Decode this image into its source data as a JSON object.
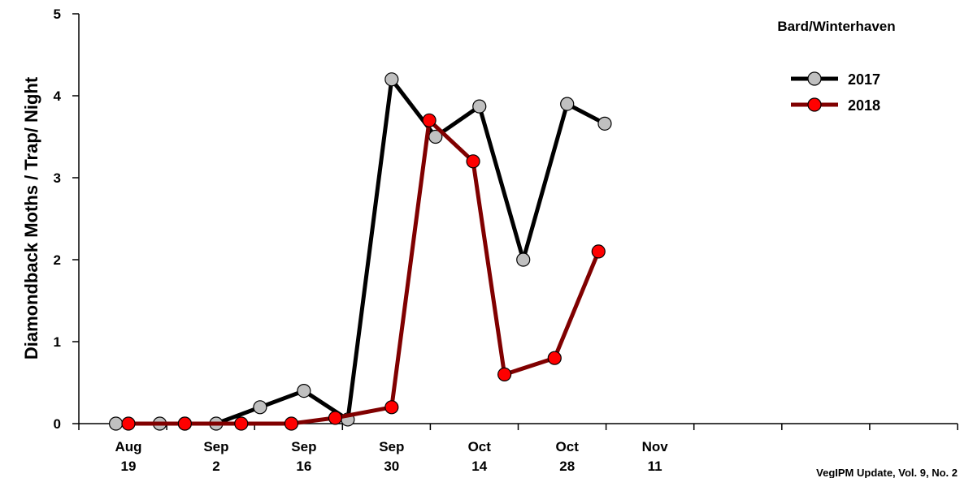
{
  "chart_data": {
    "type": "line",
    "ylabel": "Diamondback Moths / Trap/ Night",
    "xlabel": "",
    "ylim": [
      0,
      5
    ],
    "y_ticks": [
      0,
      1,
      2,
      3,
      4,
      5
    ],
    "x_ticks": [
      {
        "x": 0,
        "line1": "Aug",
        "line2": "19"
      },
      {
        "x": 14,
        "line1": "Sep",
        "line2": "2"
      },
      {
        "x": 28,
        "line1": "Sep",
        "line2": "16"
      },
      {
        "x": 42,
        "line1": "Sep",
        "line2": "30"
      },
      {
        "x": 56,
        "line1": "Oct",
        "line2": "14"
      },
      {
        "x": 70,
        "line1": "Oct",
        "line2": "28"
      },
      {
        "x": 84,
        "line1": "Nov",
        "line2": "11"
      }
    ],
    "x_unit": "days from Aug 19",
    "legend_title": "Bard/Winterhaven",
    "legend_position": "top-right",
    "grid": false,
    "series": [
      {
        "name": "2017",
        "line_color": "#000000",
        "marker_color": "#c0c0c0",
        "x": [
          -2,
          5,
          9,
          14,
          21,
          28,
          35,
          42,
          49,
          56,
          63,
          70,
          76
        ],
        "values": [
          0,
          0,
          0,
          0,
          0.2,
          0.4,
          0.05,
          4.2,
          3.5,
          3.87,
          2.0,
          3.9,
          3.66
        ]
      },
      {
        "name": "2018",
        "line_color": "#800000",
        "marker_color": "#ff0000",
        "x": [
          0,
          9,
          18,
          26,
          33,
          42,
          48,
          55,
          60,
          68,
          75
        ],
        "values": [
          0,
          0,
          0,
          0,
          0.07,
          0.2,
          3.7,
          3.2,
          0.6,
          0.8,
          2.1
        ]
      }
    ]
  },
  "footnote": "VegIPM Update, Vol. 9, No. 2"
}
